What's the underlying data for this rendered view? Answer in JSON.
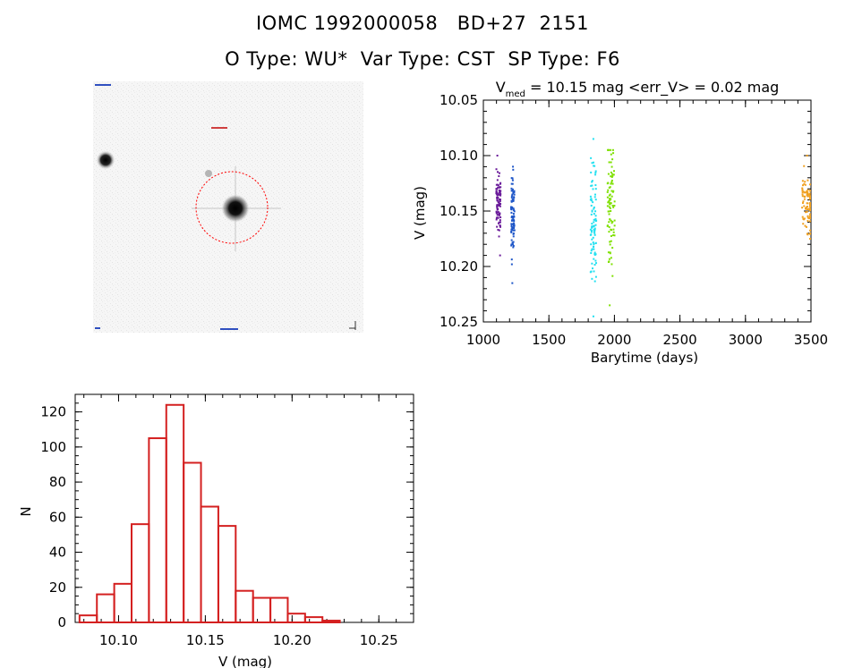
{
  "header": {
    "title": "IOMC 1992000058   BD+27  2151",
    "subtitle": "O Type: WU*  Var Type: CST  SP Type: F6"
  },
  "image_panel": {
    "caption": "image of the star field with the target circled in red",
    "circle_color": "#ff0000"
  },
  "chart_data": [
    {
      "type": "scatter",
      "title_parts": [
        "V",
        "med",
        " = 10.15 mag <err_V> = 0.02 mag"
      ],
      "xlabel": "Barytime (days)",
      "ylabel": "V (mag)",
      "xlim": [
        1000,
        3500
      ],
      "ylim": [
        10.05,
        10.25
      ],
      "y_inverted": true,
      "xticks": [
        1000,
        1500,
        2000,
        2500,
        3000,
        3500
      ],
      "yticks": [
        "10.05",
        "10.10",
        "10.15",
        "10.20",
        "10.25"
      ],
      "series": [
        {
          "color": "#6a1b9a",
          "x": 1115,
          "width": 6,
          "ymin": 10.1,
          "ymax": 10.19,
          "median": 10.145
        },
        {
          "color": "#1e56c8",
          "x": 1225,
          "width": 5,
          "ymin": 10.11,
          "ymax": 10.215,
          "median": 10.155
        },
        {
          "color": "#22e0f0",
          "x": 1840,
          "width": 8,
          "ymin": 10.085,
          "ymax": 10.245,
          "median": 10.16
        },
        {
          "color": "#7ee000",
          "x": 1975,
          "width": 10,
          "ymin": 10.095,
          "ymax": 10.235,
          "median": 10.15
        },
        {
          "color": "#f0a020",
          "x": 3480,
          "width": 14,
          "ymin": 10.1,
          "ymax": 10.175,
          "median": 10.145
        }
      ]
    },
    {
      "type": "bar",
      "xlabel": "V (mag)",
      "ylabel": "N",
      "xlim": [
        10.075,
        10.27
      ],
      "ylim": [
        0,
        130
      ],
      "xticks": [
        "10.10",
        "10.15",
        "10.20",
        "10.25"
      ],
      "yticks": [
        "0",
        "20",
        "40",
        "60",
        "80",
        "100",
        "120"
      ],
      "bin_width": 0.01,
      "bins": [
        10.08,
        10.09,
        10.1,
        10.11,
        10.12,
        10.13,
        10.14,
        10.15,
        10.16,
        10.17,
        10.18,
        10.19,
        10.2,
        10.21,
        10.22,
        10.23,
        10.24
      ],
      "values": [
        4,
        16,
        22,
        56,
        105,
        124,
        91,
        66,
        55,
        18,
        14,
        14,
        5,
        3,
        1,
        0,
        0
      ],
      "color": "#d42020"
    }
  ]
}
